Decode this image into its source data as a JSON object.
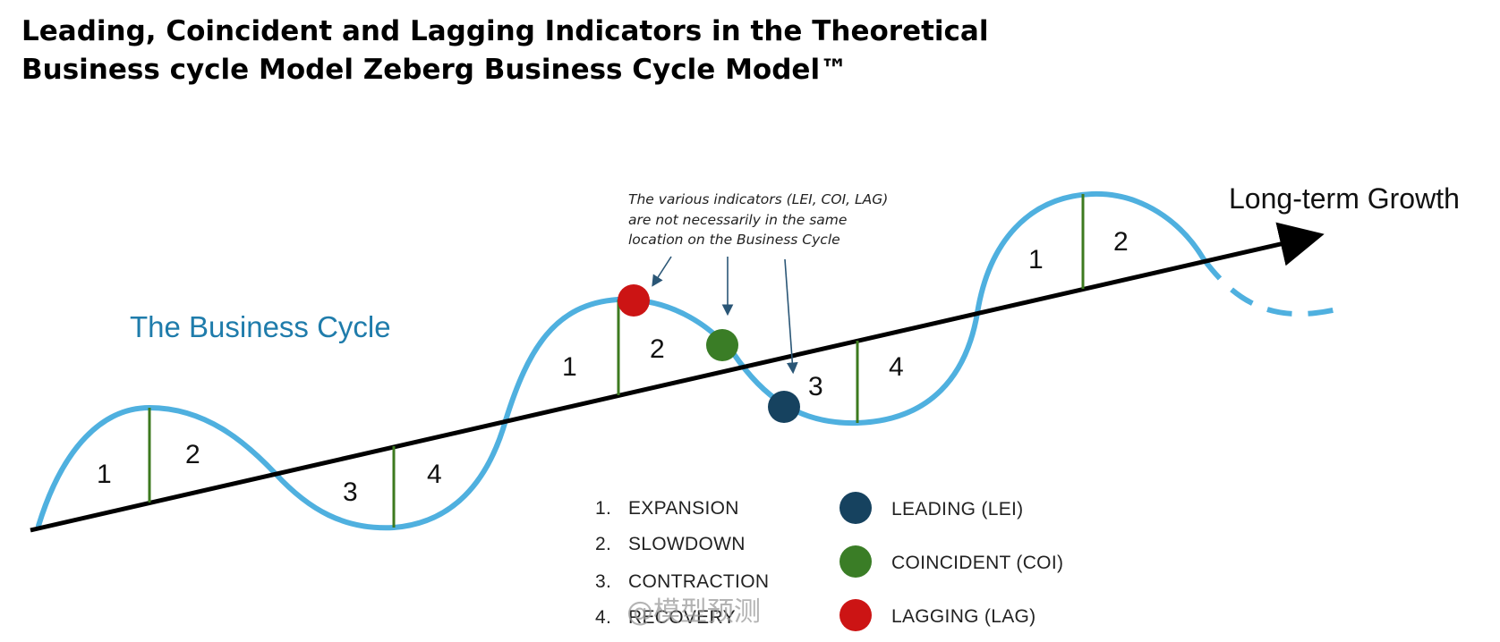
{
  "title": {
    "line1": "Leading, Coincident and Lagging Indicators in the Theoretical",
    "line2": "Business cycle Model Zeberg Business Cycle Model™"
  },
  "diagram": {
    "cycle_label": "The Business Cycle",
    "growth_label": "Long-term Growth",
    "note": [
      "The various indicators (LEI, COI, LAG)",
      "are not necessarily in the same",
      "location on the Business Cycle"
    ],
    "phase_numbers": [
      "1",
      "2",
      "3",
      "4",
      "1",
      "2",
      "3",
      "4",
      "1",
      "2"
    ]
  },
  "legend": {
    "phases": [
      {
        "num": "1.",
        "label": "EXPANSION"
      },
      {
        "num": "2.",
        "label": "SLOWDOWN"
      },
      {
        "num": "3.",
        "label": "CONTRACTION"
      },
      {
        "num": "4.",
        "label": "RECOVERY"
      }
    ],
    "indicators": [
      {
        "label": "LEADING (LEI)",
        "color": "#16425f"
      },
      {
        "label": "COINCIDENT (COI)",
        "color": "#3a7d26"
      },
      {
        "label": "LAGGING (LAG)",
        "color": "#cc1414"
      }
    ]
  },
  "colors": {
    "cycle_curve": "#4fb0df",
    "growth_axis": "#000000",
    "divider": "#3d7a1f",
    "lei": "#16425f",
    "coi": "#3a7d26",
    "lag": "#cc1414",
    "arrow": "#2a5676"
  },
  "watermark": "@模型预测"
}
